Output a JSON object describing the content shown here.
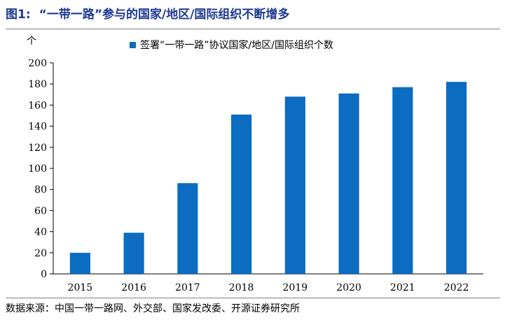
{
  "figure": {
    "label": "图1:",
    "title": "“一带一路”参与的国家/地区/国际组织不断增多"
  },
  "unit": "个",
  "source": "数据来源：中国一带一路网、外交部、国家发改委、开源证券研究所",
  "colors": {
    "bar": "#0b6cc2",
    "title": "#1f3a93"
  },
  "chart_data": {
    "type": "bar",
    "categories": [
      "2015",
      "2016",
      "2017",
      "2018",
      "2019",
      "2020",
      "2021",
      "2022"
    ],
    "series": [
      {
        "name": "签署“一带一路”协议国家/地区/国际组织个数",
        "values": [
          20,
          39,
          86,
          151,
          168,
          171,
          177,
          182
        ]
      }
    ],
    "ylim": [
      0,
      200
    ],
    "yticks": [
      0,
      20,
      40,
      60,
      80,
      100,
      120,
      140,
      160,
      180,
      200
    ],
    "ylabel": "个",
    "legend": "top",
    "grid": false
  }
}
